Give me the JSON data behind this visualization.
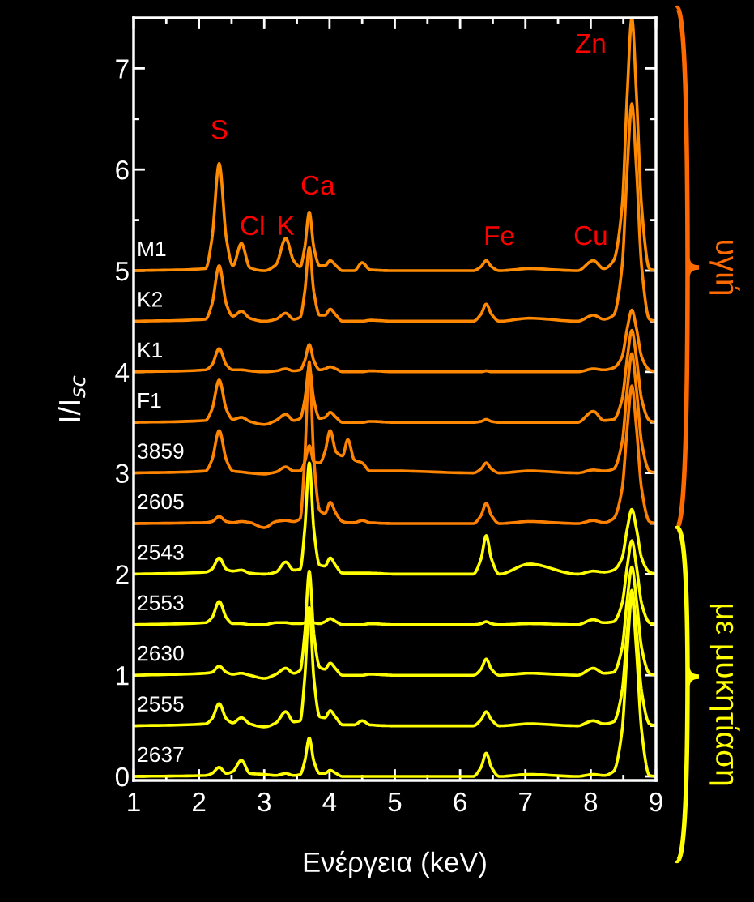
{
  "chart_data": {
    "type": "line",
    "xlabel": "Ενέργεια (keV)",
    "ylabel": "I/I$_{sc}$",
    "xlim": [
      1,
      9
    ],
    "ylim": [
      -0.04,
      7.5
    ],
    "xticks": [
      1,
      2,
      3,
      4,
      5,
      6,
      7,
      8,
      9
    ],
    "yticks": [
      0,
      1,
      2,
      3,
      4,
      5,
      6,
      7
    ],
    "grid": false,
    "legend": false,
    "marker": "none",
    "line_style": "solid",
    "x": [
      1.0,
      2.1,
      2.2,
      2.31,
      2.42,
      2.52,
      2.65,
      2.78,
      3.0,
      3.18,
      3.33,
      3.45,
      3.55,
      3.62,
      3.69,
      3.76,
      3.85,
      3.93,
      4.01,
      4.1,
      4.2,
      4.28,
      4.38,
      4.5,
      4.62,
      5.0,
      6.2,
      6.32,
      6.4,
      6.48,
      6.6,
      7.06,
      7.8,
      8.04,
      8.2,
      8.35,
      8.48,
      8.56,
      8.63,
      8.7,
      8.78,
      8.9,
      9.0
    ],
    "series": [
      {
        "name": "M1",
        "color": "#ff8c00",
        "values": [
          5.0,
          5.02,
          5.32,
          6.06,
          5.32,
          5.05,
          5.27,
          5.03,
          5.0,
          5.06,
          5.32,
          5.1,
          5.04,
          5.23,
          5.58,
          5.23,
          5.05,
          5.05,
          5.1,
          5.05,
          5.0,
          5.0,
          5.0,
          5.08,
          5.01,
          5.0,
          5.0,
          5.04,
          5.1,
          5.04,
          5.0,
          5.02,
          5.0,
          5.1,
          5.02,
          5.1,
          5.63,
          6.75,
          7.5,
          6.75,
          5.63,
          5.02,
          5.0
        ]
      },
      {
        "name": "K2",
        "color": "#ff8800",
        "values": [
          4.5,
          4.52,
          4.67,
          5.05,
          4.67,
          4.55,
          4.6,
          4.53,
          4.5,
          4.52,
          4.58,
          4.52,
          4.54,
          4.79,
          5.23,
          4.79,
          4.56,
          4.56,
          4.62,
          4.56,
          4.5,
          4.5,
          4.5,
          4.5,
          4.51,
          4.5,
          4.5,
          4.57,
          4.67,
          4.57,
          4.5,
          4.53,
          4.5,
          4.56,
          4.52,
          4.56,
          5.04,
          6.01,
          6.65,
          6.01,
          5.04,
          4.52,
          4.5
        ]
      },
      {
        "name": "K1",
        "color": "#ff8800",
        "values": [
          4.0,
          4.02,
          4.07,
          4.23,
          4.07,
          4.02,
          4.02,
          4.01,
          4.0,
          4.01,
          4.03,
          4.01,
          4.02,
          4.11,
          4.27,
          4.11,
          4.02,
          4.03,
          4.05,
          4.03,
          4.0,
          4.0,
          4.0,
          4.0,
          4.01,
          4.0,
          4.0,
          4.0,
          4.01,
          4.0,
          4.0,
          4.0,
          4.0,
          4.03,
          4.02,
          4.04,
          4.15,
          4.43,
          4.61,
          4.43,
          4.15,
          4.02,
          4.0
        ]
      },
      {
        "name": "F1",
        "color": "#ff8800",
        "values": [
          3.5,
          3.52,
          3.63,
          3.92,
          3.63,
          3.53,
          3.55,
          3.51,
          3.48,
          3.52,
          3.58,
          3.52,
          3.54,
          3.72,
          4.05,
          3.72,
          3.54,
          3.55,
          3.6,
          3.55,
          3.5,
          3.5,
          3.5,
          3.5,
          3.51,
          3.5,
          3.5,
          3.51,
          3.53,
          3.51,
          3.5,
          3.5,
          3.5,
          3.61,
          3.52,
          3.53,
          3.73,
          4.14,
          4.41,
          4.14,
          3.73,
          3.52,
          3.5
        ]
      },
      {
        "name": "3859",
        "color": "#ff8400",
        "values": [
          3.0,
          3.02,
          3.13,
          3.42,
          3.13,
          3.02,
          3.01,
          3.0,
          2.99,
          3.01,
          3.06,
          3.02,
          3.02,
          3.11,
          3.27,
          3.11,
          3.1,
          3.21,
          3.42,
          3.21,
          3.17,
          3.33,
          3.13,
          3.1,
          3.02,
          3.02,
          3.0,
          3.04,
          3.1,
          3.04,
          3.0,
          3.02,
          3.0,
          3.03,
          3.02,
          3.04,
          3.3,
          3.83,
          4.18,
          3.83,
          3.3,
          3.02,
          3.0
        ]
      },
      {
        "name": "2605",
        "color": "#ff8000",
        "values": [
          2.5,
          2.51,
          2.52,
          2.57,
          2.52,
          2.51,
          2.52,
          2.51,
          2.46,
          2.52,
          2.53,
          2.52,
          2.55,
          3.14,
          4.1,
          3.14,
          2.63,
          2.6,
          2.71,
          2.6,
          2.52,
          2.51,
          2.51,
          2.53,
          2.51,
          2.5,
          2.5,
          2.58,
          2.7,
          2.58,
          2.5,
          2.52,
          2.5,
          2.53,
          2.51,
          2.55,
          2.84,
          3.45,
          3.86,
          3.45,
          2.84,
          2.52,
          2.5
        ]
      },
      {
        "name": "2543",
        "color": "#ffff00",
        "values": [
          2.0,
          2.02,
          2.05,
          2.16,
          2.05,
          2.03,
          2.04,
          2.01,
          2.0,
          2.02,
          2.12,
          2.04,
          2.05,
          2.44,
          3.1,
          2.44,
          2.09,
          2.08,
          2.16,
          2.08,
          2.01,
          2.01,
          2.01,
          2.01,
          2.01,
          2.0,
          2.0,
          2.15,
          2.38,
          2.15,
          2.0,
          2.1,
          2.0,
          2.03,
          2.02,
          2.04,
          2.16,
          2.45,
          2.64,
          2.45,
          2.16,
          2.02,
          2.0
        ]
      },
      {
        "name": "2553",
        "color": "#ffff00",
        "values": [
          1.5,
          1.52,
          1.57,
          1.73,
          1.57,
          1.51,
          1.51,
          1.5,
          1.5,
          1.52,
          1.52,
          1.51,
          1.51,
          1.52,
          1.55,
          1.52,
          1.51,
          1.53,
          1.56,
          1.53,
          1.5,
          1.5,
          1.5,
          1.5,
          1.51,
          1.5,
          1.5,
          1.51,
          1.53,
          1.51,
          1.5,
          1.51,
          1.5,
          1.55,
          1.52,
          1.53,
          1.71,
          2.08,
          2.33,
          2.08,
          1.71,
          1.52,
          1.5
        ]
      },
      {
        "name": "2630",
        "color": "#ffff00",
        "values": [
          1.0,
          1.02,
          1.03,
          1.09,
          1.03,
          1.01,
          1.02,
          1.0,
          0.97,
          1.01,
          1.07,
          1.02,
          1.05,
          1.41,
          2.03,
          1.41,
          1.08,
          1.06,
          1.12,
          1.06,
          1.0,
          1.0,
          1.0,
          1.0,
          1.01,
          1.0,
          1.0,
          1.06,
          1.16,
          1.06,
          1.0,
          1.02,
          1.0,
          1.07,
          1.02,
          1.03,
          1.27,
          1.75,
          2.07,
          1.75,
          1.27,
          1.02,
          1.0
        ]
      },
      {
        "name": "2555",
        "color": "#ffff00",
        "values": [
          0.5,
          0.52,
          0.57,
          0.72,
          0.57,
          0.53,
          0.58,
          0.52,
          0.49,
          0.53,
          0.64,
          0.54,
          0.55,
          0.97,
          1.67,
          0.97,
          0.59,
          0.58,
          0.65,
          0.58,
          0.51,
          0.51,
          0.51,
          0.55,
          0.51,
          0.5,
          0.5,
          0.56,
          0.64,
          0.56,
          0.5,
          0.52,
          0.5,
          0.55,
          0.52,
          0.54,
          0.84,
          1.44,
          1.84,
          1.44,
          0.84,
          0.52,
          0.5
        ]
      },
      {
        "name": "2637",
        "color": "#ffff00",
        "values": [
          0.0,
          0.01,
          0.03,
          0.09,
          0.03,
          0.05,
          0.16,
          0.03,
          0.02,
          0.01,
          0.03,
          0.01,
          0.02,
          0.15,
          0.38,
          0.15,
          0.03,
          0.03,
          0.06,
          0.03,
          0.0,
          0.0,
          0.0,
          0.0,
          0.0,
          0.0,
          0.0,
          0.09,
          0.23,
          0.09,
          0.0,
          0.02,
          0.0,
          0.02,
          0.01,
          0.05,
          0.45,
          1.25,
          1.78,
          1.25,
          0.45,
          0.01,
          0.0
        ]
      }
    ],
    "annotations": [
      "S",
      "Cl",
      "K",
      "Ca",
      "Fe",
      "Cu",
      "Zn",
      "υγιή",
      "με μυκητίαση"
    ]
  }
}
